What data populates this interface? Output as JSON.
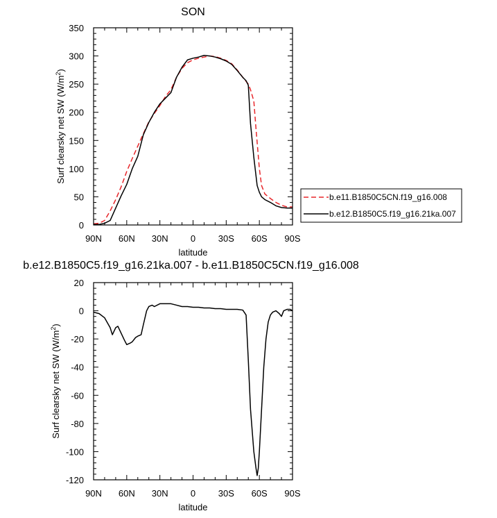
{
  "chart_data": [
    {
      "type": "line",
      "title": "SON",
      "xlabel": "latitude",
      "ylabel": "Surf clearsky net SW (W/m",
      "ylabel_sup": "2",
      "ylabel_tail": ")",
      "xlim": [
        90,
        -90
      ],
      "ylim": [
        0,
        350
      ],
      "xticks": [
        90,
        60,
        30,
        0,
        -30,
        -60,
        -90
      ],
      "xtick_labels": [
        "90N",
        "60N",
        "30N",
        "0",
        "30S",
        "60S",
        "90S"
      ],
      "yticks": [
        0,
        50,
        100,
        150,
        200,
        250,
        300,
        350
      ],
      "ytick_labels": [
        "0",
        "50",
        "100",
        "150",
        "200",
        "250",
        "300",
        "350"
      ],
      "legend": "outside-right",
      "series": [
        {
          "name": "b.e11.B1850C5CN.f19_g16.008",
          "color": "#e8262a",
          "dash": true,
          "x": [
            90,
            85,
            80,
            75,
            70,
            65,
            60,
            55,
            50,
            45,
            40,
            35,
            30,
            25,
            20,
            15,
            10,
            5,
            0,
            -5,
            -10,
            -15,
            -20,
            -25,
            -30,
            -35,
            -40,
            -45,
            -50,
            -52,
            -55,
            -57,
            -60,
            -62,
            -65,
            -70,
            -75,
            -80,
            -85,
            -90
          ],
          "y": [
            2,
            3,
            8,
            25,
            45,
            68,
            95,
            118,
            140,
            162,
            183,
            198,
            212,
            228,
            240,
            262,
            278,
            288,
            293,
            296,
            298,
            300,
            299,
            296,
            292,
            286,
            275,
            262,
            250,
            240,
            220,
            170,
            100,
            70,
            55,
            47,
            40,
            35,
            32,
            32
          ]
        },
        {
          "name": "b.e12.B1850C5.f19_g16.21ka.007",
          "color": "#000000",
          "dash": false,
          "x": [
            90,
            85,
            80,
            75,
            70,
            65,
            60,
            55,
            50,
            45,
            40,
            35,
            30,
            25,
            20,
            15,
            10,
            5,
            0,
            -5,
            -10,
            -15,
            -20,
            -25,
            -30,
            -35,
            -40,
            -45,
            -48,
            -50,
            -52,
            -55,
            -58,
            -60,
            -62,
            -65,
            -70,
            -75,
            -80,
            -85,
            -90
          ],
          "y": [
            1,
            1,
            3,
            8,
            30,
            52,
            72,
            100,
            122,
            160,
            182,
            200,
            215,
            225,
            235,
            262,
            280,
            293,
            296,
            298,
            301,
            300,
            298,
            295,
            291,
            285,
            274,
            262,
            256,
            248,
            180,
            120,
            70,
            58,
            50,
            45,
            40,
            34,
            31,
            30,
            30
          ]
        }
      ]
    },
    {
      "type": "line",
      "title": "b.e12.B1850C5.f19_g16.21ka.007 - b.e11.B1850C5CN.f19_g16.008",
      "xlabel": "latitude",
      "ylabel": "Surf clearsky net SW (W/m",
      "ylabel_sup": "2",
      "ylabel_tail": ")",
      "xlim": [
        90,
        -90
      ],
      "ylim": [
        -120,
        20
      ],
      "xticks": [
        90,
        60,
        30,
        0,
        -30,
        -60,
        -90
      ],
      "xtick_labels": [
        "90N",
        "60N",
        "30N",
        "0",
        "30S",
        "60S",
        "90S"
      ],
      "yticks": [
        -120,
        -100,
        -80,
        -60,
        -40,
        -20,
        0,
        20
      ],
      "ytick_labels": [
        "-120",
        "-100",
        "-80",
        "-60",
        "-40",
        "-20",
        "0",
        "20"
      ],
      "series": [
        {
          "color": "#000000",
          "dash": false,
          "x": [
            90,
            85,
            80,
            75,
            73,
            70,
            68,
            65,
            62,
            60,
            57,
            55,
            52,
            50,
            47,
            45,
            42,
            40,
            37,
            35,
            30,
            25,
            20,
            15,
            10,
            5,
            0,
            -5,
            -10,
            -15,
            -20,
            -25,
            -30,
            -35,
            -40,
            -45,
            -48,
            -50,
            -52,
            -55,
            -57,
            -58,
            -59,
            -60,
            -62,
            -64,
            -66,
            -68,
            -70,
            -72,
            -75,
            -78,
            -80,
            -82,
            -85,
            -88,
            -90
          ],
          "y": [
            -1,
            -2,
            -5,
            -12,
            -17,
            -12,
            -11,
            -16,
            -21,
            -24,
            -23,
            -22,
            -19,
            -18,
            -17,
            -10,
            0,
            3,
            4,
            3,
            5,
            5,
            5,
            4,
            3,
            3,
            2.5,
            2.5,
            2,
            2,
            1.5,
            1.5,
            1,
            1,
            1,
            0.5,
            -3,
            -35,
            -70,
            -100,
            -112,
            -117,
            -112,
            -100,
            -70,
            -40,
            -20,
            -8,
            -3,
            -1,
            0,
            -2,
            -4,
            0,
            1,
            1,
            0
          ]
        }
      ]
    }
  ]
}
